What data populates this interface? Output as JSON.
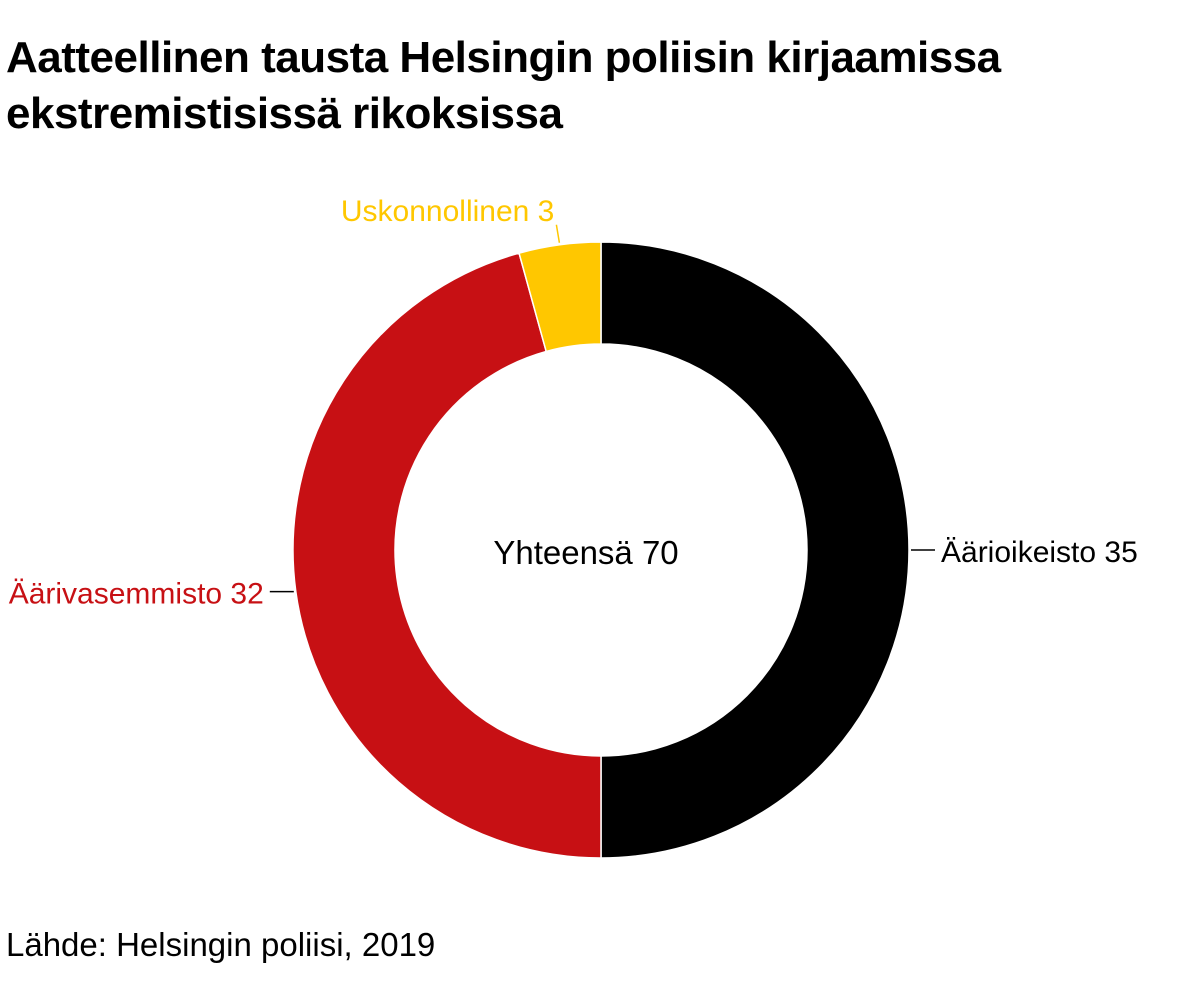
{
  "chart_data": {
    "type": "pie",
    "title": "Aatteellinen tausta Helsingin poliisin kirjaamissa ekstremistisissä rikoksissa",
    "center_label": "Yhteensä 70",
    "slices": [
      {
        "name": "Äärioikeisto",
        "value": 35,
        "label": "Äärioikeisto 35",
        "color": "#000000"
      },
      {
        "name": "Äärivasemmisto",
        "value": 32,
        "label": "Äärivasemmisto 32",
        "color": "#c71014"
      },
      {
        "name": "Uskonnollinen",
        "value": 3,
        "label": "Uskonnollinen 3",
        "color": "#ffc700"
      }
    ],
    "source": "Lähde: Helsingin poliisi, 2019"
  }
}
